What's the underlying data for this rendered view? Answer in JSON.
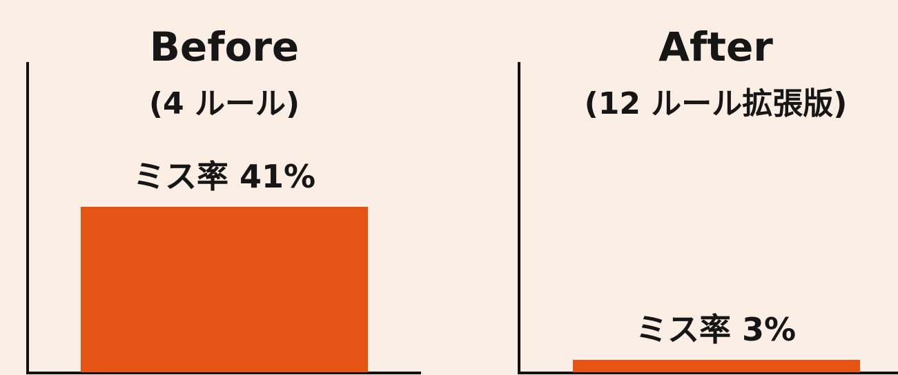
{
  "chart_data": [
    {
      "type": "bar",
      "title": "Before",
      "subtitle": "(4 ルール)",
      "categories": [
        "Before"
      ],
      "values": [
        41
      ],
      "unit": "%",
      "data_labels": [
        "ミス率 41%"
      ],
      "ylim": [
        0,
        60
      ],
      "grid": false,
      "bar_color": "#e65415",
      "axis_color": "#111111"
    },
    {
      "type": "bar",
      "title": "After",
      "subtitle": "(12 ルール拡張版)",
      "categories": [
        "After"
      ],
      "values": [
        3
      ],
      "unit": "%",
      "data_labels": [
        "ミス率 3%"
      ],
      "ylim": [
        0,
        60
      ],
      "grid": false,
      "bar_color": "#e65415",
      "axis_color": "#111111"
    }
  ],
  "background_color": "#fbeee4"
}
